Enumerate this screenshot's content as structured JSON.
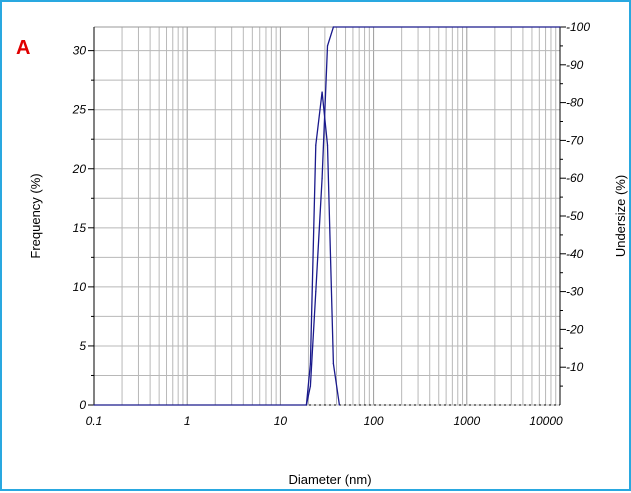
{
  "panel_label": "A",
  "chart_data": {
    "type": "line",
    "xlabel": "Diameter (nm)",
    "ylabel": "Frequency (%)",
    "y2label": "Undersize (%)",
    "xscale": "log",
    "xlim": [
      0.1,
      10000
    ],
    "ylim": [
      0,
      32
    ],
    "y2lim": [
      0,
      100
    ],
    "x_tick_labels": [
      "0.1",
      "1",
      "10",
      "100",
      "1000",
      "10000"
    ],
    "y_tick_labels": [
      "0",
      "5",
      "10",
      "15",
      "20",
      "25",
      "30"
    ],
    "y2_tick_labels": [
      "10",
      "20",
      "30",
      "40",
      "50",
      "60",
      "70",
      "80",
      "90",
      "100"
    ],
    "grid": true,
    "line_color": "#1a1a8c",
    "series": [
      {
        "axis": "left",
        "x": [
          19,
          21,
          24,
          28,
          32,
          37,
          43
        ],
        "y": [
          0,
          3.5,
          22,
          26.5,
          22,
          3.5,
          0
        ]
      },
      {
        "axis": "right",
        "x": [
          0.1,
          19,
          21,
          24,
          28,
          32,
          37,
          10000
        ],
        "y": [
          0,
          0,
          5,
          30,
          60,
          95,
          100,
          100
        ]
      }
    ]
  }
}
